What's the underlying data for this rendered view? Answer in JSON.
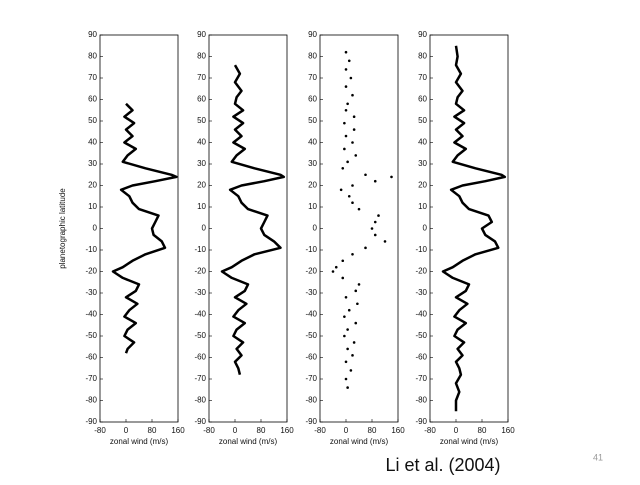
{
  "chart_data": [
    {
      "type": "line",
      "ylabel": "planetographic latitude",
      "xlabel": "zonal wind (m/s)",
      "color": "#000000",
      "xlim": [
        -80,
        160
      ],
      "xticks": [
        -80,
        0,
        80,
        160
      ],
      "ylim": [
        -90,
        90
      ],
      "yticks": [
        -90,
        -80,
        -70,
        -60,
        -50,
        -40,
        -30,
        -20,
        -10,
        0,
        10,
        20,
        30,
        40,
        50,
        60,
        70,
        80,
        90
      ],
      "y": [
        58,
        55,
        52,
        49,
        46,
        43,
        40,
        37,
        34,
        31,
        28,
        25,
        24,
        22,
        20,
        18,
        15,
        12,
        9,
        6,
        3,
        0,
        -3,
        -6,
        -9,
        -12,
        -15,
        -18,
        -20,
        -23,
        -26,
        -29,
        -32,
        -35,
        -38,
        -41,
        -44,
        -47,
        -50,
        -53,
        -56,
        -58
      ],
      "x": [
        0,
        20,
        -5,
        25,
        0,
        20,
        -5,
        30,
        5,
        -10,
        60,
        140,
        155,
        90,
        20,
        -15,
        10,
        20,
        40,
        100,
        90,
        80,
        85,
        110,
        120,
        60,
        20,
        -10,
        -40,
        -10,
        40,
        30,
        0,
        35,
        10,
        -5,
        30,
        5,
        -5,
        25,
        5,
        0
      ]
    },
    {
      "type": "line",
      "xlabel": "zonal wind (m/s)",
      "color": "#000000",
      "xlim": [
        -80,
        160
      ],
      "xticks": [
        -80,
        0,
        80,
        160
      ],
      "ylim": [
        -90,
        90
      ],
      "yticks": [
        -90,
        -80,
        -70,
        -60,
        -50,
        -40,
        -30,
        -20,
        -10,
        0,
        10,
        20,
        30,
        40,
        50,
        60,
        70,
        80,
        90
      ],
      "y": [
        76,
        72,
        68,
        64,
        61,
        58,
        55,
        52,
        49,
        46,
        43,
        40,
        37,
        34,
        31,
        28,
        25,
        24,
        22,
        20,
        18,
        15,
        12,
        9,
        6,
        3,
        0,
        -3,
        -6,
        -9,
        -12,
        -15,
        -18,
        -20,
        -23,
        -26,
        -29,
        -32,
        -35,
        -38,
        -41,
        -44,
        -47,
        -50,
        -53,
        -56,
        -59,
        -62,
        -65,
        -68
      ],
      "x": [
        0,
        15,
        0,
        20,
        5,
        0,
        25,
        -5,
        25,
        0,
        20,
        -5,
        30,
        5,
        -10,
        60,
        140,
        150,
        90,
        20,
        -15,
        10,
        20,
        40,
        100,
        90,
        80,
        90,
        120,
        140,
        60,
        20,
        -10,
        -40,
        -10,
        40,
        30,
        0,
        35,
        10,
        -5,
        30,
        5,
        -5,
        25,
        5,
        20,
        0,
        10,
        15
      ]
    },
    {
      "type": "scatter",
      "xlabel": "zonal wind (m/s)",
      "color": "#000000",
      "xlim": [
        -80,
        160
      ],
      "xticks": [
        -80,
        0,
        80,
        160
      ],
      "ylim": [
        -90,
        90
      ],
      "yticks": [
        -90,
        -80,
        -70,
        -60,
        -50,
        -40,
        -30,
        -20,
        -10,
        0,
        10,
        20,
        30,
        40,
        50,
        60,
        70,
        80,
        90
      ],
      "y": [
        82,
        78,
        74,
        70,
        66,
        62,
        58,
        55,
        52,
        49,
        46,
        43,
        40,
        37,
        34,
        31,
        28,
        25,
        24,
        22,
        20,
        18,
        15,
        12,
        9,
        6,
        3,
        0,
        -3,
        -6,
        -9,
        -12,
        -15,
        -18,
        -20,
        -23,
        -26,
        -29,
        -32,
        -35,
        -38,
        -41,
        -44,
        -47,
        -50,
        -53,
        -56,
        -59,
        -62,
        -66,
        -70,
        -74
      ],
      "x": [
        0,
        10,
        0,
        15,
        0,
        20,
        5,
        0,
        25,
        -5,
        25,
        0,
        20,
        -5,
        30,
        5,
        -10,
        60,
        140,
        90,
        20,
        -15,
        10,
        20,
        40,
        100,
        90,
        80,
        90,
        120,
        60,
        20,
        -10,
        -30,
        -40,
        -10,
        40,
        30,
        0,
        35,
        10,
        -5,
        30,
        5,
        -5,
        25,
        5,
        20,
        0,
        15,
        0,
        5
      ]
    },
    {
      "type": "line",
      "xlabel": "zonal wind (m/s)",
      "color": "#000000",
      "xlim": [
        -80,
        160
      ],
      "xticks": [
        -80,
        0,
        80,
        160
      ],
      "ylim": [
        -90,
        90
      ],
      "yticks": [
        -90,
        -80,
        -70,
        -60,
        -50,
        -40,
        -30,
        -20,
        -10,
        0,
        10,
        20,
        30,
        40,
        50,
        60,
        70,
        80,
        90
      ],
      "y": [
        85,
        80,
        76,
        72,
        68,
        64,
        61,
        58,
        55,
        52,
        49,
        46,
        43,
        40,
        37,
        34,
        31,
        28,
        25,
        24,
        22,
        20,
        18,
        15,
        12,
        9,
        6,
        3,
        0,
        -3,
        -6,
        -9,
        -12,
        -15,
        -18,
        -20,
        -23,
        -26,
        -29,
        -32,
        -35,
        -38,
        -41,
        -44,
        -47,
        -50,
        -53,
        -56,
        -59,
        -62,
        -65,
        -68,
        -72,
        -76,
        -80,
        -85
      ],
      "x": [
        0,
        5,
        0,
        15,
        0,
        20,
        5,
        0,
        25,
        -5,
        25,
        0,
        20,
        -5,
        30,
        5,
        -10,
        60,
        140,
        150,
        90,
        20,
        -15,
        10,
        20,
        40,
        100,
        110,
        80,
        90,
        120,
        130,
        60,
        20,
        -10,
        -40,
        -10,
        40,
        30,
        0,
        35,
        10,
        -5,
        30,
        5,
        -5,
        25,
        5,
        20,
        0,
        10,
        15,
        0,
        10,
        0,
        0
      ]
    }
  ],
  "caption": "Li et al. (2004)",
  "page_number": "41"
}
